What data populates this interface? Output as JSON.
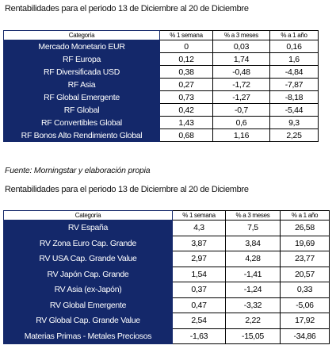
{
  "sections": [
    {
      "title": "Rentabilidades para el periodo 13 de Diciembre al 20 de Diciembre",
      "header": [
        "Categoría",
        "% 1 semana",
        "% a 3 meses",
        "% a 1 año"
      ],
      "rows": [
        [
          "Mercado Monetario EUR",
          "0",
          "0,03",
          "0,16"
        ],
        [
          "RF Europa",
          "0,12",
          "1,74",
          "1,6"
        ],
        [
          "RF Diversificada USD",
          "0,38",
          "-0,48",
          "-4,84"
        ],
        [
          "RF Asia",
          "0,27",
          "-1,72",
          "-7,87"
        ],
        [
          "RF Global Emergente",
          "0,73",
          "-1,27",
          "-8,18"
        ],
        [
          "RF Global",
          "0,42",
          "-0,7",
          "-5,44"
        ],
        [
          "RF Convertibles Global",
          "1,43",
          "0,6",
          "9,3"
        ],
        [
          "RF Bonos Alto Rendimiento Global",
          "0,68",
          "1,16",
          "2,25"
        ]
      ]
    },
    {
      "title": "Rentabilidades para el periodo 13 de Diciembre al 20 de Diciembre",
      "header": [
        "Categoría",
        "% 1 semana",
        "% a 3 meses",
        "% a 1 año"
      ],
      "rows": [
        [
          "RV España",
          "4,3",
          "7,5",
          "26,58"
        ],
        [
          "RV Zona Euro Cap. Grande",
          "3,87",
          "3,84",
          "19,69"
        ],
        [
          "RV USA Cap. Grande Value",
          "2,97",
          "4,28",
          "23,77"
        ],
        [
          "RV Japón Cap. Grande",
          "1,54",
          "-1,41",
          "20,57"
        ],
        [
          "RV Asia (ex-Japón)",
          "0,37",
          "-1,24",
          "0,33"
        ],
        [
          "RV Global Emergente",
          "0,47",
          "-3,32",
          "-5,06"
        ],
        [
          "RV Global Cap. Grande Value",
          "2,54",
          "2,22",
          "17,92"
        ],
        [
          "Materias Primas - Metales Preciosos",
          "-1,63",
          "-15,05",
          "-34,86"
        ]
      ]
    }
  ],
  "source": "Fuente: Morningstar y elaboración propia"
}
